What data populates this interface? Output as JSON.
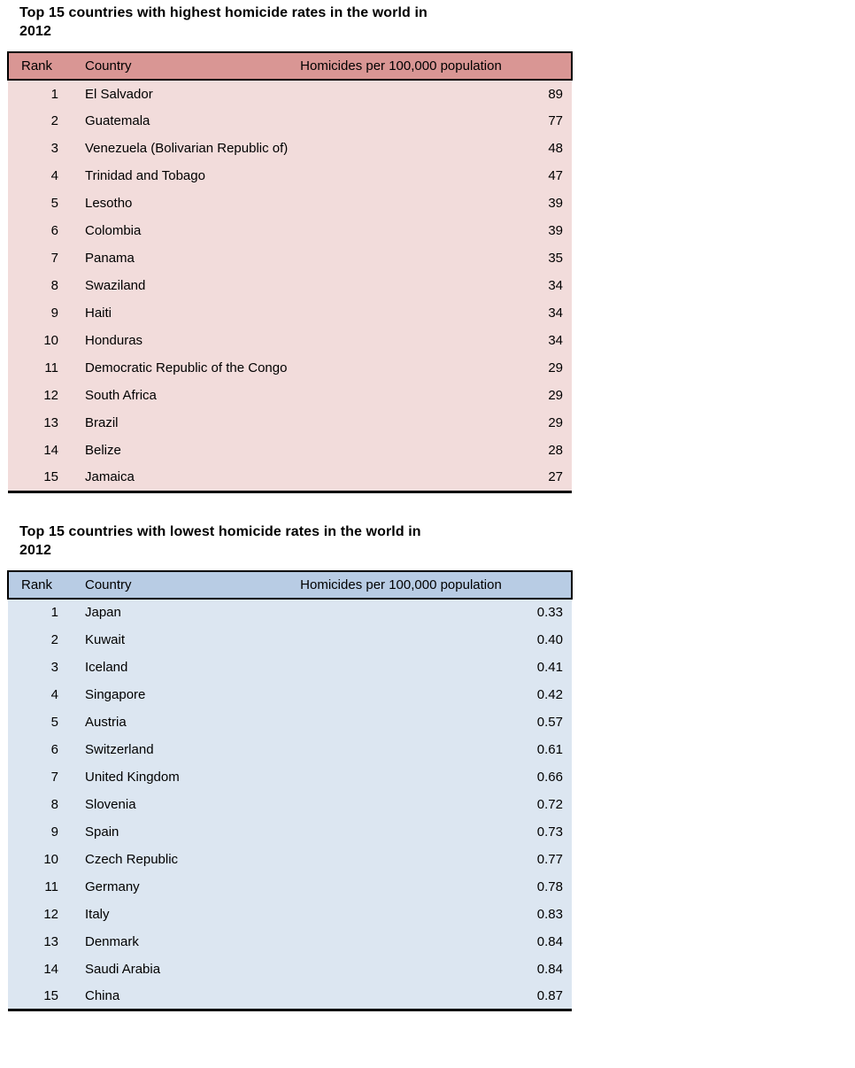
{
  "page": {
    "background": "#FFFFFF",
    "text_color": "#000000",
    "border_color": "#000000"
  },
  "tables": [
    {
      "name": "highest-homicide-rates",
      "title_line1": "Top 15 countries with highest homicide rates in the world in",
      "title_line2": "2012",
      "title_full": "Top 15 countries with highest homicide rates in the world in 2012",
      "columns": {
        "rank": "Rank",
        "country": "Country",
        "value": "Homicides per 100,000 population"
      },
      "colors": {
        "header_bg": "#D99694",
        "row_bg": "#F2DCDB"
      },
      "rows": [
        {
          "rank": "1",
          "country": "El Salvador",
          "value": "89"
        },
        {
          "rank": "2",
          "country": "Guatemala",
          "value": "77"
        },
        {
          "rank": "3",
          "country": "Venezuela (Bolivarian Republic of)",
          "value": "48"
        },
        {
          "rank": "4",
          "country": "Trinidad and Tobago",
          "value": "47"
        },
        {
          "rank": "5",
          "country": "Lesotho",
          "value": "39"
        },
        {
          "rank": "6",
          "country": "Colombia",
          "value": "39"
        },
        {
          "rank": "7",
          "country": "Panama",
          "value": "35"
        },
        {
          "rank": "8",
          "country": "Swaziland",
          "value": "34"
        },
        {
          "rank": "9",
          "country": "Haiti",
          "value": "34"
        },
        {
          "rank": "10",
          "country": "Honduras",
          "value": "34"
        },
        {
          "rank": "11",
          "country": "Democratic Republic of the Congo",
          "value": "29"
        },
        {
          "rank": "12",
          "country": "South Africa",
          "value": "29"
        },
        {
          "rank": "13",
          "country": "Brazil",
          "value": "29"
        },
        {
          "rank": "14",
          "country": "Belize",
          "value": "28"
        },
        {
          "rank": "15",
          "country": "Jamaica",
          "value": "27"
        }
      ]
    },
    {
      "name": "lowest-homicide-rates",
      "title_line1": "Top 15 countries with lowest homicide rates in the world in",
      "title_line2": "2012",
      "title_full": "Top 15 countries with lowest homicide rates in the world in 2012",
      "columns": {
        "rank": "Rank",
        "country": "Country",
        "value": "Homicides per 100,000 population"
      },
      "colors": {
        "header_bg": "#B8CCE4",
        "row_bg": "#DCE6F1"
      },
      "rows": [
        {
          "rank": "1",
          "country": "Japan",
          "value": "0.33"
        },
        {
          "rank": "2",
          "country": "Kuwait",
          "value": "0.40"
        },
        {
          "rank": "3",
          "country": "Iceland",
          "value": "0.41"
        },
        {
          "rank": "4",
          "country": "Singapore",
          "value": "0.42"
        },
        {
          "rank": "5",
          "country": "Austria",
          "value": "0.57"
        },
        {
          "rank": "6",
          "country": "Switzerland",
          "value": "0.61"
        },
        {
          "rank": "7",
          "country": "United Kingdom",
          "value": "0.66"
        },
        {
          "rank": "8",
          "country": "Slovenia",
          "value": "0.72"
        },
        {
          "rank": "9",
          "country": "Spain",
          "value": "0.73"
        },
        {
          "rank": "10",
          "country": "Czech Republic",
          "value": "0.77"
        },
        {
          "rank": "11",
          "country": "Germany",
          "value": "0.78"
        },
        {
          "rank": "12",
          "country": "Italy",
          "value": "0.83"
        },
        {
          "rank": "13",
          "country": "Denmark",
          "value": "0.84"
        },
        {
          "rank": "14",
          "country": "Saudi Arabia",
          "value": "0.84"
        },
        {
          "rank": "15",
          "country": "China",
          "value": "0.87"
        }
      ]
    }
  ],
  "chart_data": [
    {
      "type": "table",
      "title": "Top 15 countries with highest homicide rates in the world in 2012",
      "columns": [
        "Rank",
        "Country",
        "Homicides per 100,000 population"
      ],
      "categories": [
        "El Salvador",
        "Guatemala",
        "Venezuela (Bolivarian Republic of)",
        "Trinidad and Tobago",
        "Lesotho",
        "Colombia",
        "Panama",
        "Swaziland",
        "Haiti",
        "Honduras",
        "Democratic Republic of the Congo",
        "South Africa",
        "Brazil",
        "Belize",
        "Jamaica"
      ],
      "values": [
        89,
        77,
        48,
        47,
        39,
        39,
        35,
        34,
        34,
        34,
        29,
        29,
        29,
        28,
        27
      ]
    },
    {
      "type": "table",
      "title": "Top 15 countries with lowest homicide rates in the world in 2012",
      "columns": [
        "Rank",
        "Country",
        "Homicides per 100,000 population"
      ],
      "categories": [
        "Japan",
        "Kuwait",
        "Iceland",
        "Singapore",
        "Austria",
        "Switzerland",
        "United Kingdom",
        "Slovenia",
        "Spain",
        "Czech Republic",
        "Germany",
        "Italy",
        "Denmark",
        "Saudi Arabia",
        "China"
      ],
      "values": [
        0.33,
        0.4,
        0.41,
        0.42,
        0.57,
        0.61,
        0.66,
        0.72,
        0.73,
        0.77,
        0.78,
        0.83,
        0.84,
        0.84,
        0.87
      ]
    }
  ]
}
